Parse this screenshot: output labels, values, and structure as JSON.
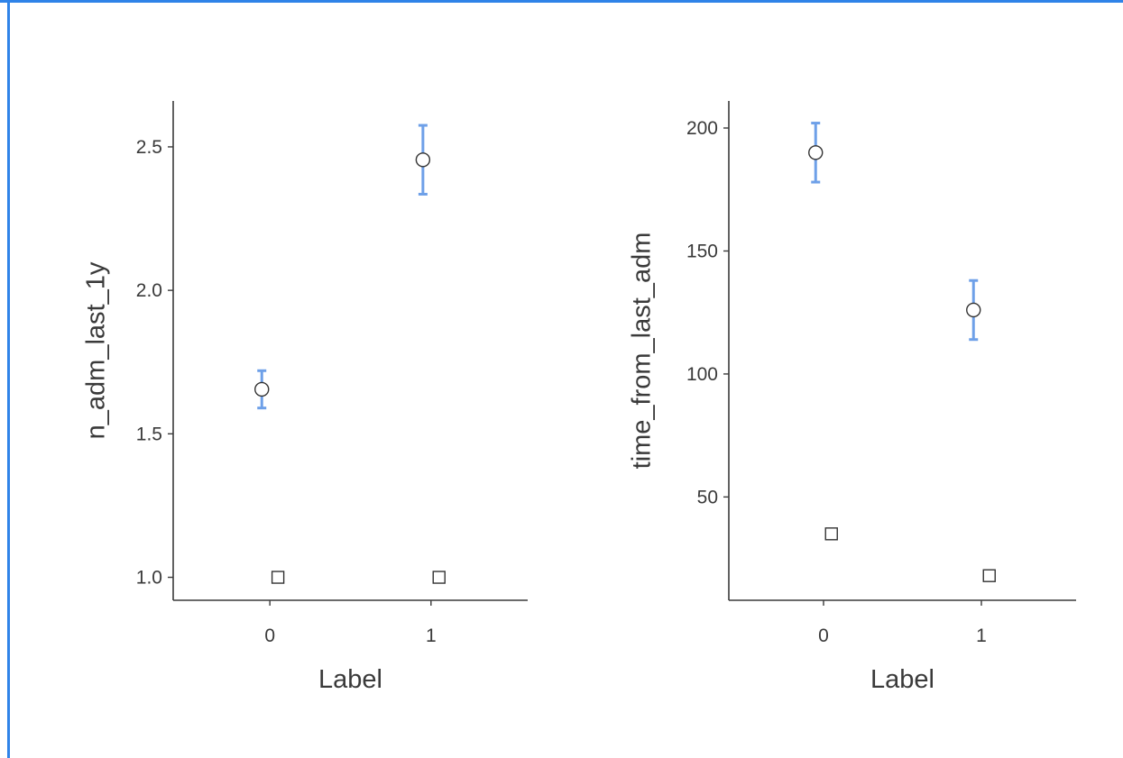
{
  "colors": {
    "frame": "#2f83e8",
    "errorbar": "#6ea0e8",
    "axis": "#3a3a3a",
    "marker_fill": "#ffffff",
    "marker_stroke": "#333333"
  },
  "chart_data": [
    {
      "type": "scatter",
      "xlabel": "Label",
      "ylabel": "n_adm_last_1y",
      "categories": [
        "0",
        "1"
      ],
      "xlim": [
        -0.6,
        1.6
      ],
      "ylim": [
        0.92,
        2.66
      ],
      "yticks": [
        1.0,
        1.5,
        2.0,
        2.5
      ],
      "ytick_labels": [
        "1.0",
        "1.5",
        "2.0",
        "2.5"
      ],
      "grid": false,
      "series": [
        {
          "marker": "circle",
          "x": [
            -0.05,
            0.95
          ],
          "y": [
            1.655,
            2.455
          ],
          "err_low": [
            1.59,
            2.335
          ],
          "err_high": [
            1.72,
            2.575
          ]
        },
        {
          "marker": "square",
          "x": [
            0.05,
            1.05
          ],
          "y": [
            1.0,
            1.0
          ]
        }
      ]
    },
    {
      "type": "scatter",
      "xlabel": "Label",
      "ylabel": "time_from_last_adm",
      "categories": [
        "0",
        "1"
      ],
      "xlim": [
        -0.6,
        1.6
      ],
      "ylim": [
        8,
        211
      ],
      "yticks": [
        50,
        100,
        150,
        200
      ],
      "ytick_labels": [
        "50",
        "100",
        "150",
        "200"
      ],
      "grid": false,
      "series": [
        {
          "marker": "circle",
          "x": [
            -0.05,
            0.95
          ],
          "y": [
            190,
            126
          ],
          "err_low": [
            178,
            114
          ],
          "err_high": [
            202,
            138
          ]
        },
        {
          "marker": "square",
          "x": [
            0.05,
            1.05
          ],
          "y": [
            35,
            18
          ]
        }
      ]
    }
  ]
}
